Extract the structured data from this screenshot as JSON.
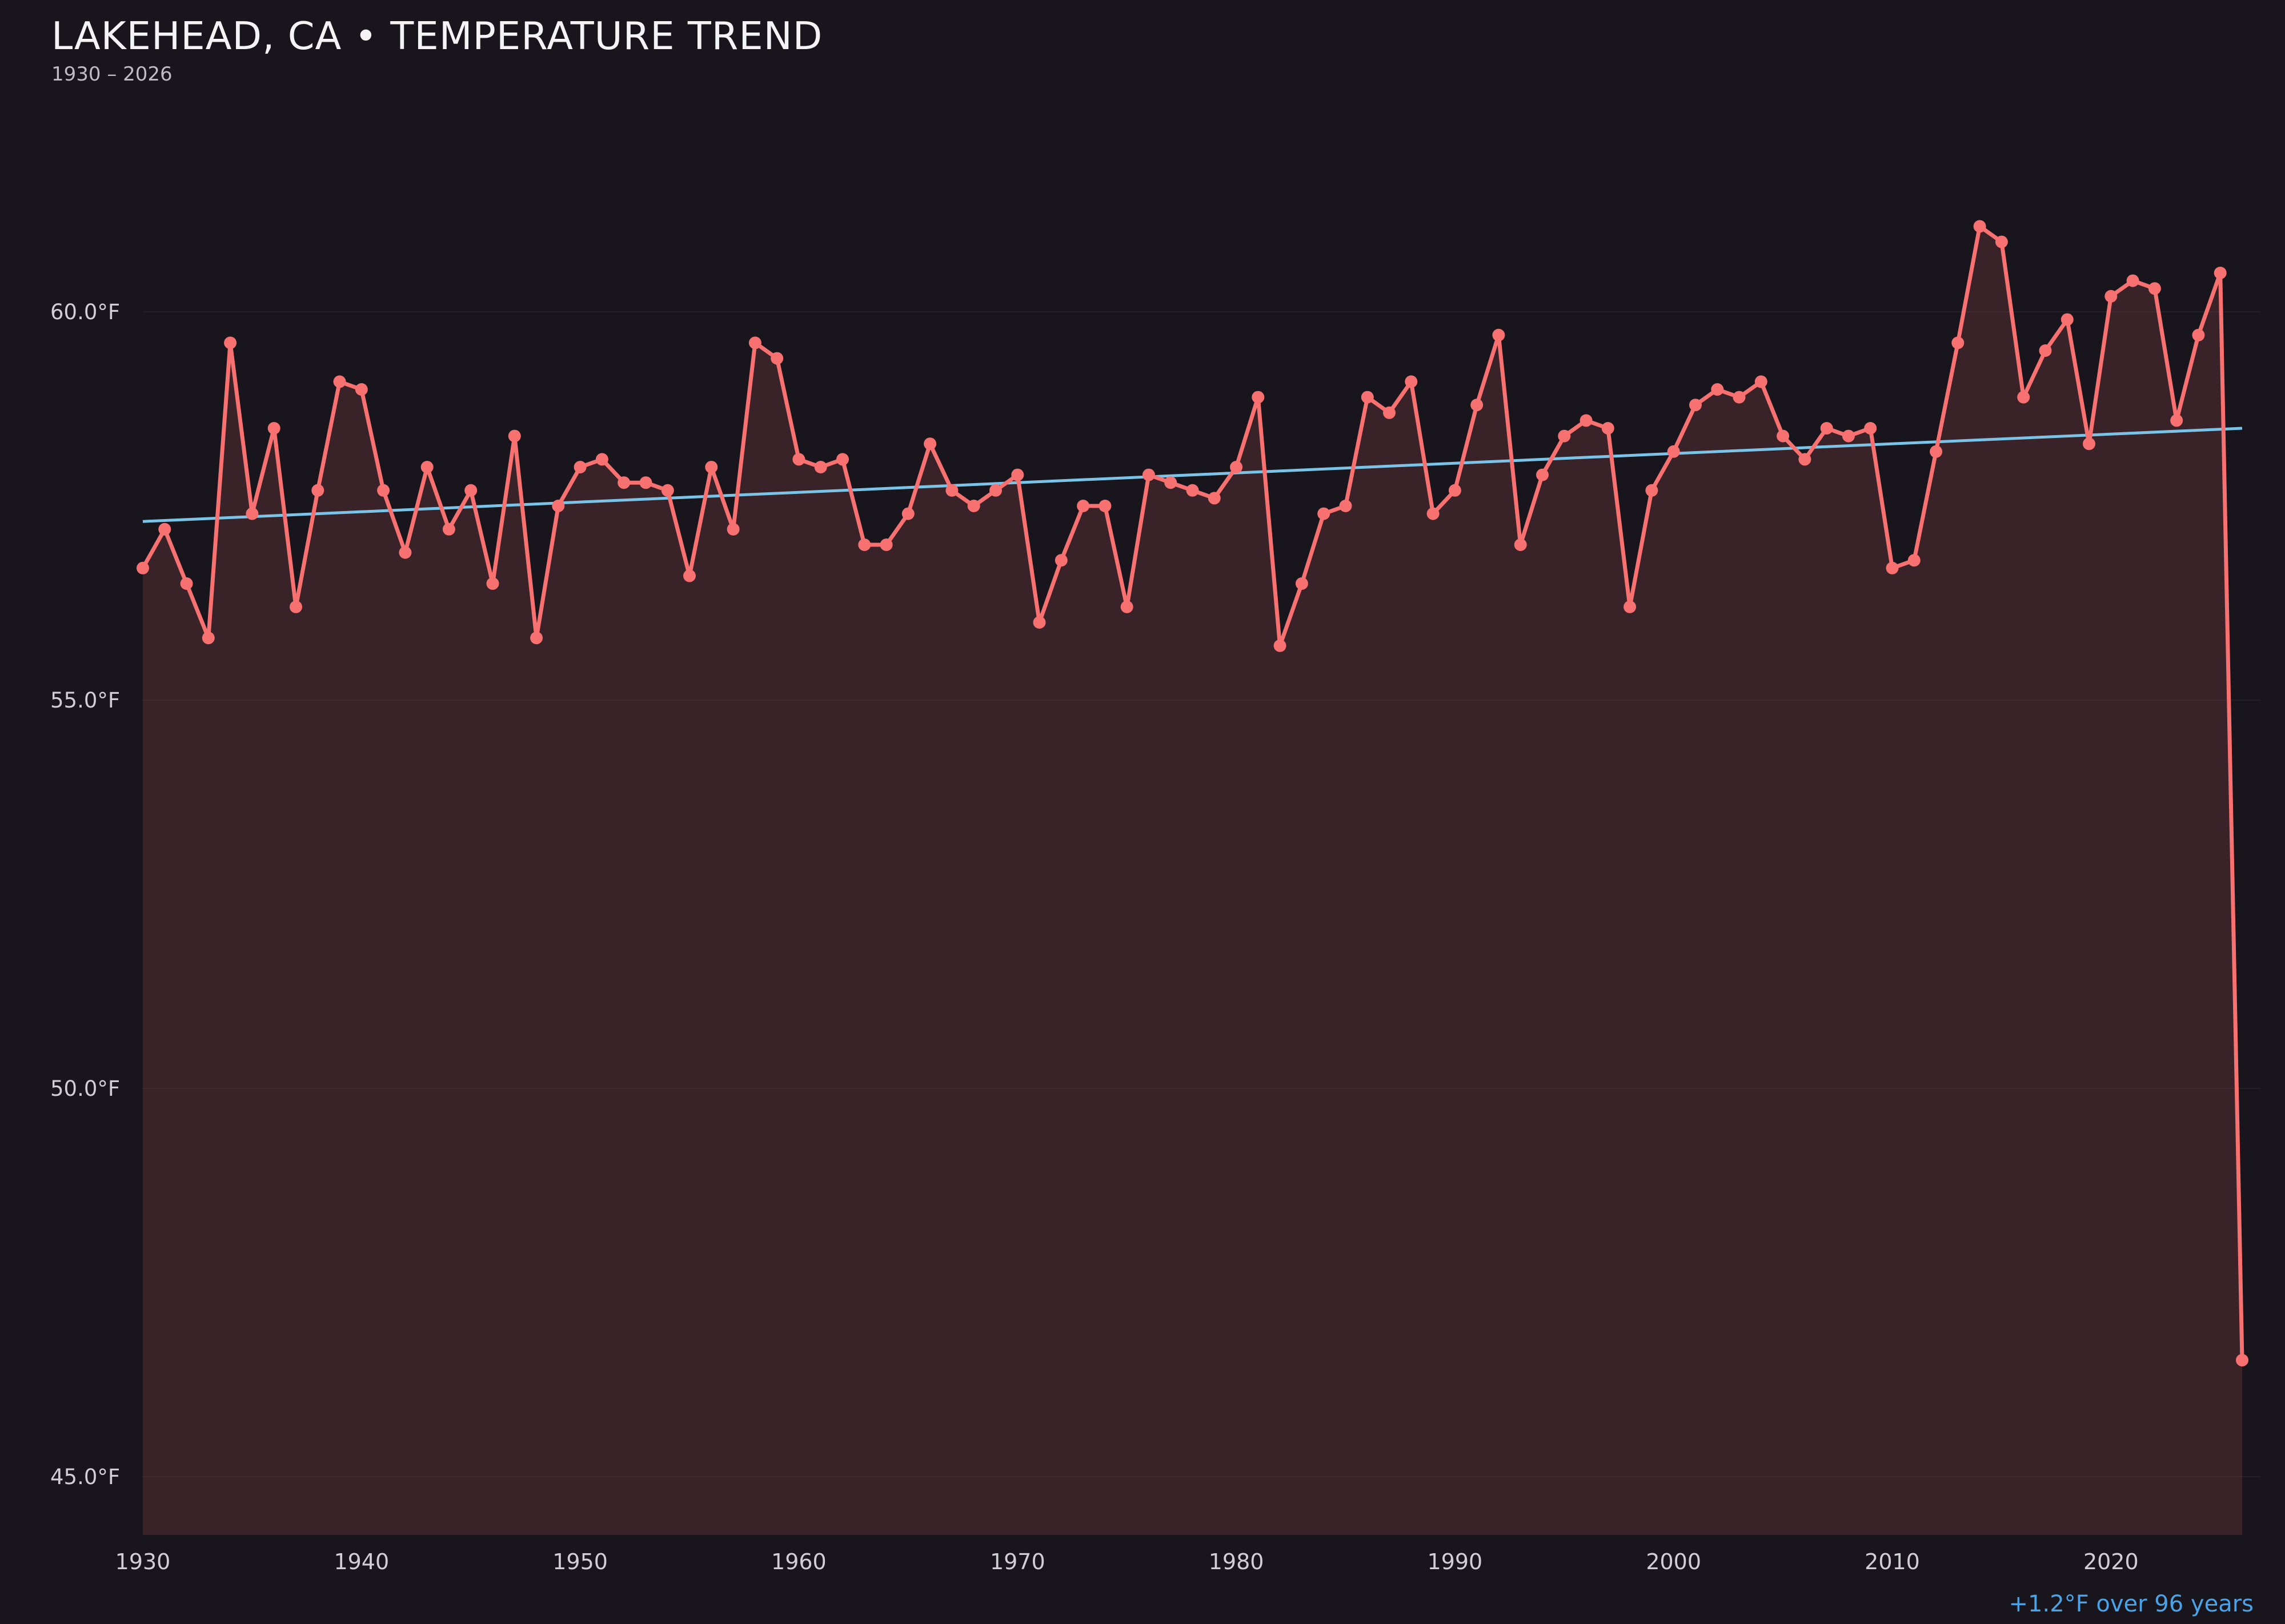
{
  "header": {
    "title": "LAKEHEAD, CA • TEMPERATURE TREND",
    "subtitle": "1930 – 2026"
  },
  "footer": {
    "annotation": "+1.2°F over 96 years"
  },
  "colors": {
    "background": "#18151c",
    "line": "#f87171",
    "fill": "rgba(248,113,113,0.15)",
    "trend": "#7bc4e8",
    "annotation": "#4aa3e6",
    "title_text": "#f4f4f6",
    "tick_text": "#cfcfd4",
    "grid": "rgba(255,255,255,0.05)"
  },
  "chart_data": {
    "type": "line",
    "title": "LAKEHEAD, CA • TEMPERATURE TREND",
    "subtitle": "1930 – 2026",
    "xlabel": "",
    "ylabel": "°F",
    "grid": "faint-horizontal",
    "legend_position": "none",
    "markers": true,
    "area_fill": true,
    "ylim_labeled": [
      45,
      60
    ],
    "x": [
      1930,
      1931,
      1932,
      1933,
      1934,
      1935,
      1936,
      1937,
      1938,
      1939,
      1940,
      1941,
      1942,
      1943,
      1944,
      1945,
      1946,
      1947,
      1948,
      1949,
      1950,
      1951,
      1952,
      1953,
      1954,
      1955,
      1956,
      1957,
      1958,
      1959,
      1960,
      1961,
      1962,
      1963,
      1964,
      1965,
      1966,
      1967,
      1968,
      1969,
      1970,
      1971,
      1972,
      1973,
      1974,
      1975,
      1976,
      1977,
      1978,
      1979,
      1980,
      1981,
      1982,
      1983,
      1984,
      1985,
      1986,
      1987,
      1988,
      1989,
      1990,
      1991,
      1992,
      1993,
      1994,
      1995,
      1996,
      1997,
      1998,
      1999,
      2000,
      2001,
      2002,
      2003,
      2004,
      2005,
      2006,
      2007,
      2008,
      2009,
      2010,
      2011,
      2012,
      2013,
      2014,
      2015,
      2016,
      2017,
      2018,
      2019,
      2020,
      2021,
      2022,
      2023,
      2024,
      2025,
      2026
    ],
    "y": [
      56.7,
      57.2,
      56.5,
      55.8,
      59.6,
      57.4,
      58.5,
      56.2,
      57.7,
      59.1,
      59.0,
      57.7,
      56.9,
      58.0,
      57.2,
      57.7,
      56.5,
      58.4,
      55.8,
      57.5,
      58.0,
      58.1,
      57.8,
      57.8,
      57.7,
      56.6,
      58.0,
      57.2,
      59.6,
      59.4,
      58.1,
      58.0,
      58.1,
      57.0,
      57.0,
      57.4,
      58.3,
      57.7,
      57.5,
      57.7,
      57.9,
      56.0,
      56.8,
      57.5,
      57.5,
      56.2,
      57.9,
      57.8,
      57.7,
      57.6,
      58.0,
      58.9,
      55.7,
      56.5,
      57.4,
      57.5,
      58.9,
      58.7,
      59.1,
      57.4,
      57.7,
      58.8,
      59.7,
      57.0,
      57.9,
      58.4,
      58.6,
      58.5,
      56.2,
      57.7,
      58.2,
      58.8,
      59.0,
      58.9,
      59.1,
      58.4,
      58.1,
      58.5,
      58.4,
      58.5,
      56.7,
      56.8,
      58.2,
      59.6,
      61.1,
      60.9,
      58.9,
      59.5,
      59.9,
      58.3,
      60.2,
      60.4,
      60.3,
      58.6,
      59.7,
      60.5,
      46.5
    ],
    "yticks": [
      {
        "v": 60,
        "label": "60.0°F"
      },
      {
        "v": 55,
        "label": "55.0°F"
      },
      {
        "v": 50,
        "label": "50.0°F"
      },
      {
        "v": 45,
        "label": "45.0°F"
      }
    ],
    "xticks": [
      {
        "v": 1930,
        "label": "1930"
      },
      {
        "v": 1940,
        "label": "1940"
      },
      {
        "v": 1950,
        "label": "1950"
      },
      {
        "v": 1960,
        "label": "1960"
      },
      {
        "v": 1970,
        "label": "1970"
      },
      {
        "v": 1980,
        "label": "1980"
      },
      {
        "v": 1990,
        "label": "1990"
      },
      {
        "v": 2000,
        "label": "2000"
      },
      {
        "v": 2010,
        "label": "2010"
      },
      {
        "v": 2020,
        "label": "2020"
      }
    ],
    "trend": {
      "start_year": 1930,
      "end_year": 2026,
      "start_f": 57.3,
      "end_f": 58.5,
      "label": "+1.2°F over 96 years"
    }
  }
}
